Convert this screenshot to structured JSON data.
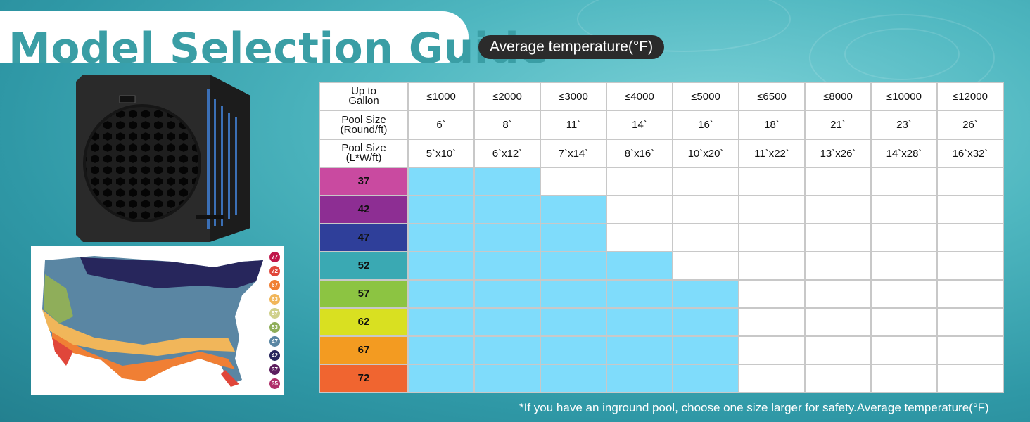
{
  "title": "Model Selection Guide",
  "badge": "Average temperature(°F)",
  "table": {
    "header_rows": [
      {
        "label_line1": "Up to",
        "label_line2": "Gallon",
        "cells": [
          "≤1000",
          "≤2000",
          "≤3000",
          "≤4000",
          "≤5000",
          "≤6500",
          "≤8000",
          "≤10000",
          "≤12000"
        ]
      },
      {
        "label_line1": "Pool Size",
        "label_line2": "(Round/ft)",
        "cells": [
          "6`",
          "8`",
          "11`",
          "14`",
          "16`",
          "18`",
          "21`",
          "23`",
          "26`"
        ]
      },
      {
        "label_line1": "Pool Size",
        "label_line2": "(L*W/ft)",
        "cells": [
          "5`x10`",
          "6`x12`",
          "7`x14`",
          "8`x16`",
          "10`x20`",
          "11`x22`",
          "13`x26`",
          "14`x28`",
          "16`x32`"
        ]
      }
    ],
    "temp_rows": [
      {
        "temp": "37",
        "color": "#c94aa0",
        "filled": 2
      },
      {
        "temp": "42",
        "color": "#8d2e93",
        "filled": 3
      },
      {
        "temp": "47",
        "color": "#2f3f9a",
        "filled": 3
      },
      {
        "temp": "52",
        "color": "#3aa9b3",
        "filled": 4
      },
      {
        "temp": "57",
        "color": "#8cc442",
        "filled": 5
      },
      {
        "temp": "62",
        "color": "#d9e021",
        "filled": 5
      },
      {
        "temp": "67",
        "color": "#f39b21",
        "filled": 5
      },
      {
        "temp": "72",
        "color": "#f06530",
        "filled": 5
      }
    ],
    "fill_color": "#7fdcfb"
  },
  "map_legend": [
    {
      "value": "77",
      "color": "#c0174a"
    },
    {
      "value": "72",
      "color": "#e0463a"
    },
    {
      "value": "67",
      "color": "#f07f34"
    },
    {
      "value": "63",
      "color": "#f1b65a"
    },
    {
      "value": "57",
      "color": "#cfd08a"
    },
    {
      "value": "53",
      "color": "#8fae5a"
    },
    {
      "value": "47",
      "color": "#5a86a3"
    },
    {
      "value": "42",
      "color": "#27265c"
    },
    {
      "value": "37",
      "color": "#5c1e5e"
    },
    {
      "value": "35",
      "color": "#b0306a"
    }
  ],
  "footnote": "*If you have an inground pool, choose one size larger for safety.Average temperature(°F)"
}
